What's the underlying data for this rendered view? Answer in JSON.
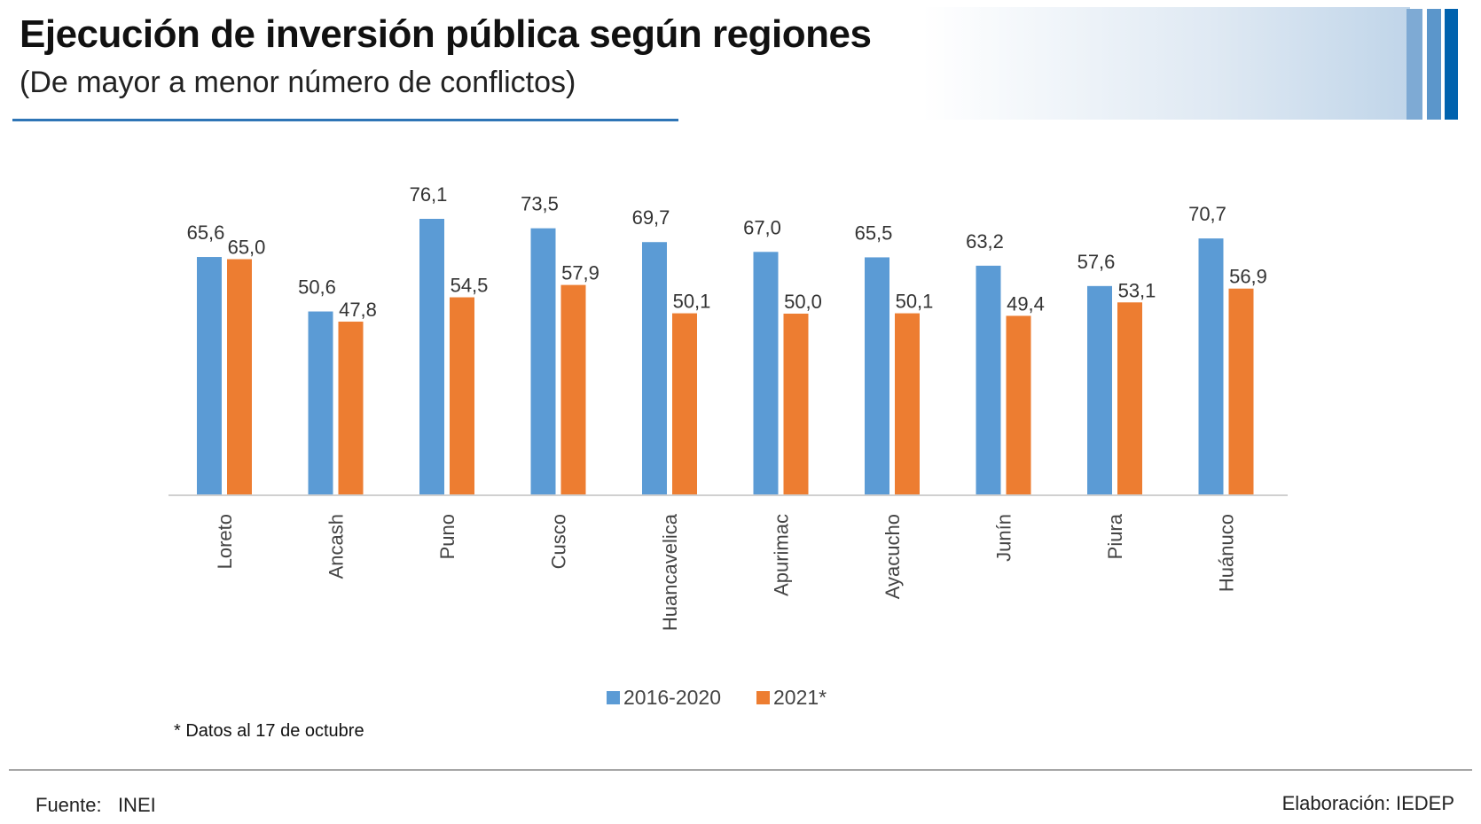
{
  "header": {
    "title": "Ejecución de inversión pública según regiones",
    "subtitle": "(De mayor a menor número de conflictos)"
  },
  "colors": {
    "series_1": "#5b9bd5",
    "series_2": "#ed7d31",
    "accent": "#2e75b6"
  },
  "chart_data": {
    "type": "bar",
    "title": "Ejecución de inversión pública según regiones",
    "subtitle": "(De mayor a menor número de conflictos)",
    "xlabel": "",
    "ylabel": "",
    "ylim": [
      0,
      80
    ],
    "grid": false,
    "legend_position": "bottom",
    "categories": [
      "Loreto",
      "Ancash",
      "Puno",
      "Cusco",
      "Huancavelica",
      "Apurimac",
      "Ayacucho",
      "Junín",
      "Piura",
      "Huánuco"
    ],
    "series": [
      {
        "name": "2016-2020",
        "color": "#5b9bd5",
        "values": [
          65.6,
          50.6,
          76.1,
          73.5,
          69.7,
          67.0,
          65.5,
          63.2,
          57.6,
          70.7
        ],
        "labels": [
          "65,6",
          "50,6",
          "76,1",
          "73,5",
          "69,7",
          "67,0",
          "65,5",
          "63,2",
          "57,6",
          "70,7"
        ]
      },
      {
        "name": "2021*",
        "color": "#ed7d31",
        "values": [
          65.0,
          47.8,
          54.5,
          57.9,
          50.1,
          50.0,
          50.1,
          49.4,
          53.1,
          56.9
        ],
        "labels": [
          "65,0",
          "47,8",
          "54,5",
          "57,9",
          "50,1",
          "50,0",
          "50,1",
          "49,4",
          "53,1",
          "56,9"
        ]
      }
    ]
  },
  "legend": {
    "items": [
      {
        "label": "2016-2020",
        "color": "#5b9bd5"
      },
      {
        "label": "2021*",
        "color": "#ed7d31"
      }
    ]
  },
  "note": "* Datos al 17 de octubre",
  "footer": {
    "source": "Fuente:   INEI",
    "credit": "Elaboración: IEDEP"
  }
}
